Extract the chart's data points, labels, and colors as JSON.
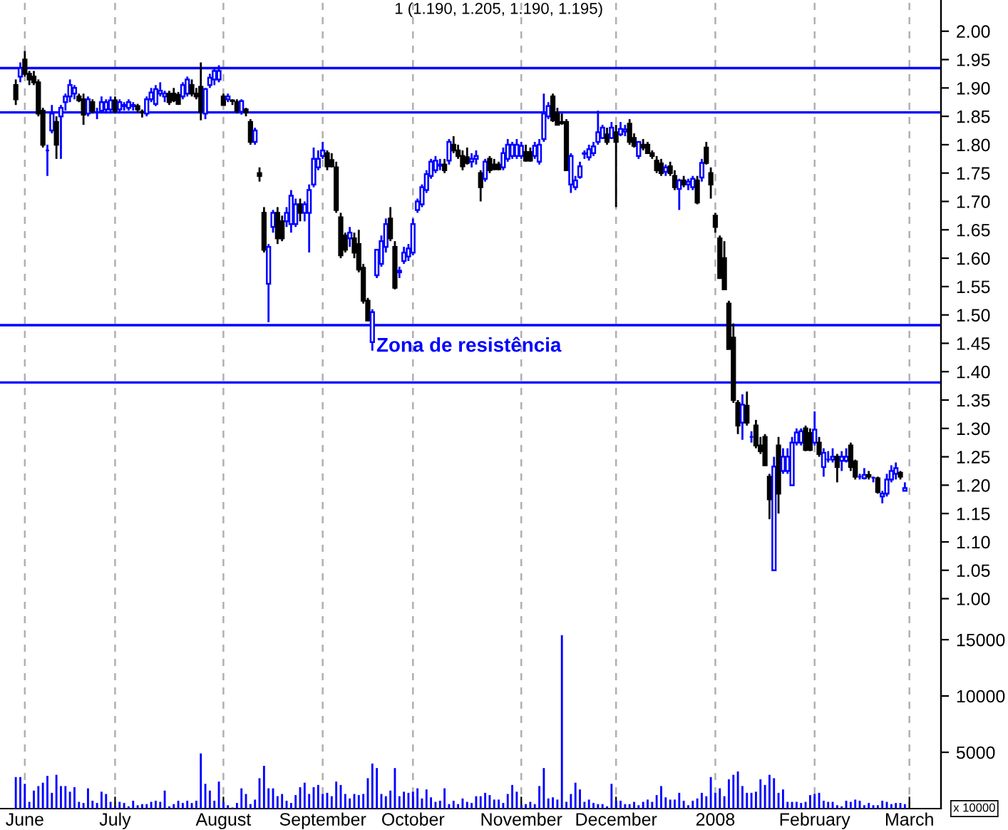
{
  "chart_data": [
    {
      "type": "candlestick",
      "title": "1 (1.190, 1.205, 1.190, 1.195)",
      "categories": [
        null,
        null,
        "June",
        null,
        null,
        null,
        null,
        null,
        null,
        null,
        null,
        null,
        null,
        null,
        null,
        null,
        null,
        null,
        null,
        null,
        null,
        null,
        "July",
        null,
        null,
        null,
        null,
        null,
        null,
        null,
        null,
        null,
        null,
        null,
        null,
        null,
        null,
        null,
        null,
        null,
        null,
        null,
        null,
        null,
        null,
        null,
        "August",
        null,
        null,
        null,
        null,
        null,
        null,
        null,
        null,
        null,
        null,
        null,
        null,
        null,
        null,
        null,
        null,
        null,
        null,
        null,
        null,
        null,
        "September",
        null,
        null,
        null,
        null,
        null,
        null,
        null,
        null,
        null,
        null,
        null,
        null,
        null,
        null,
        null,
        null,
        null,
        null,
        null,
        "October",
        null,
        null,
        null,
        null,
        null,
        null,
        null,
        null,
        null,
        null,
        null,
        null,
        null,
        null,
        null,
        null,
        null,
        null,
        null,
        null,
        null,
        null,
        null,
        "November",
        null,
        null,
        null,
        null,
        null,
        null,
        null,
        null,
        null,
        null,
        null,
        null,
        null,
        null,
        null,
        null,
        null,
        null,
        null,
        null,
        "December",
        null,
        null,
        null,
        null,
        null,
        null,
        null,
        null,
        null,
        null,
        null,
        null,
        null,
        null,
        null,
        null,
        null,
        null,
        null,
        null,
        null,
        "2008",
        null,
        null,
        null,
        null,
        null,
        null,
        null,
        null,
        null,
        null,
        null,
        null,
        null,
        null,
        null,
        null,
        null,
        null,
        null,
        null,
        null,
        "February",
        null,
        null,
        null,
        null,
        null,
        null,
        null,
        null,
        null,
        null,
        null,
        null,
        null,
        null,
        null,
        null,
        null,
        null,
        null,
        null,
        "March"
      ],
      "ohlc": [
        [
          1.905,
          1.915,
          1.87,
          1.88
        ],
        [
          1.92,
          1.945,
          1.91,
          1.935
        ],
        [
          1.95,
          1.965,
          1.92,
          1.925
        ],
        [
          1.925,
          1.93,
          1.905,
          1.915
        ],
        [
          1.92,
          1.93,
          1.905,
          1.91
        ],
        [
          1.91,
          1.915,
          1.85,
          1.855
        ],
        [
          1.86,
          1.865,
          1.795,
          1.8
        ],
        [
          1.79,
          1.8,
          1.745,
          1.79
        ],
        [
          1.825,
          1.87,
          1.82,
          1.855
        ],
        [
          1.84,
          1.85,
          1.775,
          1.8
        ],
        [
          1.85,
          1.87,
          1.775,
          1.865
        ],
        [
          1.875,
          1.89,
          1.86,
          1.885
        ],
        [
          1.885,
          1.915,
          1.875,
          1.905
        ],
        [
          1.89,
          1.905,
          1.88,
          1.9
        ],
        [
          1.885,
          1.89,
          1.875,
          1.878
        ],
        [
          1.88,
          1.89,
          1.835,
          1.853
        ],
        [
          1.855,
          1.885,
          1.85,
          1.88
        ],
        [
          1.875,
          1.88,
          1.855,
          1.86
        ],
        [
          1.857,
          1.865,
          1.845,
          1.857
        ],
        [
          1.86,
          1.885,
          1.855,
          1.875
        ],
        [
          1.862,
          1.88,
          1.855,
          1.875
        ],
        [
          1.862,
          1.885,
          1.855,
          1.878
        ],
        [
          1.878,
          1.885,
          1.855,
          1.86
        ],
        [
          1.862,
          1.88,
          1.855,
          1.875
        ],
        [
          1.868,
          1.875,
          1.86,
          1.87
        ],
        [
          1.865,
          1.88,
          1.86,
          1.875
        ],
        [
          1.868,
          1.875,
          1.86,
          1.87
        ],
        [
          1.868,
          1.872,
          1.858,
          1.862
        ],
        [
          1.858,
          1.862,
          1.848,
          1.857
        ],
        [
          1.855,
          1.885,
          1.85,
          1.88
        ],
        [
          1.88,
          1.9,
          1.875,
          1.892
        ],
        [
          1.872,
          1.905,
          1.868,
          1.898
        ],
        [
          1.89,
          1.91,
          1.885,
          1.895
        ],
        [
          1.885,
          1.895,
          1.875,
          1.89
        ],
        [
          1.89,
          1.895,
          1.87,
          1.875
        ],
        [
          1.89,
          1.9,
          1.875,
          1.878
        ],
        [
          1.888,
          1.893,
          1.87,
          1.872
        ],
        [
          1.885,
          1.91,
          1.88,
          1.905
        ],
        [
          1.89,
          1.92,
          1.885,
          1.915
        ],
        [
          1.905,
          1.915,
          1.885,
          1.89
        ],
        [
          1.89,
          1.9,
          1.88,
          1.885
        ],
        [
          1.902,
          1.945,
          1.843,
          1.858
        ],
        [
          1.855,
          1.9,
          1.845,
          1.898
        ],
        [
          1.905,
          1.925,
          1.9,
          1.918
        ],
        [
          1.915,
          1.935,
          1.905,
          1.93
        ],
        [
          1.915,
          1.94,
          1.91,
          1.93
        ],
        [
          1.885,
          1.89,
          1.87,
          1.87
        ],
        [
          1.88,
          1.89,
          1.875,
          1.885
        ],
        [
          1.878,
          1.88,
          1.87,
          1.877
        ],
        [
          1.875,
          1.88,
          1.855,
          1.86
        ],
        [
          1.858,
          1.88,
          1.853,
          1.877
        ],
        [
          1.862,
          1.865,
          1.85,
          1.857
        ],
        [
          1.84,
          1.845,
          1.8,
          1.805
        ],
        [
          1.805,
          1.83,
          1.8,
          1.825
        ],
        [
          1.75,
          1.76,
          1.735,
          1.745
        ],
        [
          1.68,
          1.69,
          1.61,
          1.615
        ],
        [
          1.555,
          1.625,
          1.487,
          1.62
        ],
        [
          1.655,
          1.685,
          1.645,
          1.68
        ],
        [
          1.68,
          1.69,
          1.625,
          1.635
        ],
        [
          1.665,
          1.675,
          1.63,
          1.635
        ],
        [
          1.665,
          1.69,
          1.655,
          1.68
        ],
        [
          1.66,
          1.72,
          1.645,
          1.71
        ],
        [
          1.66,
          1.705,
          1.655,
          1.695
        ],
        [
          1.695,
          1.705,
          1.665,
          1.68
        ],
        [
          1.68,
          1.7,
          1.665,
          1.695
        ],
        [
          1.68,
          1.73,
          1.61,
          1.72
        ],
        [
          1.73,
          1.795,
          1.725,
          1.775
        ],
        [
          1.76,
          1.79,
          1.755,
          1.775
        ],
        [
          1.78,
          1.805,
          1.775,
          1.79
        ],
        [
          1.785,
          1.79,
          1.755,
          1.762
        ],
        [
          1.773,
          1.785,
          1.76,
          1.762
        ],
        [
          1.76,
          1.77,
          1.68,
          1.685
        ],
        [
          1.672,
          1.68,
          1.6,
          1.605
        ],
        [
          1.64,
          1.645,
          1.61,
          1.615
        ],
        [
          1.635,
          1.655,
          1.62,
          1.645
        ],
        [
          1.635,
          1.645,
          1.6,
          1.61
        ],
        [
          1.625,
          1.65,
          1.575,
          1.58
        ],
        [
          1.583,
          1.59,
          1.52,
          1.525
        ],
        [
          1.525,
          1.53,
          1.49,
          1.49
        ],
        [
          1.452,
          1.51,
          1.437,
          1.505
        ],
        [
          1.57,
          1.615,
          1.565,
          1.615
        ],
        [
          1.59,
          1.64,
          1.585,
          1.63
        ],
        [
          1.62,
          1.67,
          1.61,
          1.66
        ],
        [
          1.67,
          1.69,
          1.63,
          1.635
        ],
        [
          1.62,
          1.63,
          1.545,
          1.548
        ],
        [
          1.575,
          1.585,
          1.565,
          1.578
        ],
        [
          1.595,
          1.62,
          1.59,
          1.61
        ],
        [
          1.603,
          1.625,
          1.595,
          1.617
        ],
        [
          1.61,
          1.67,
          1.605,
          1.66
        ],
        [
          1.685,
          1.705,
          1.68,
          1.7
        ],
        [
          1.695,
          1.73,
          1.69,
          1.725
        ],
        [
          1.72,
          1.755,
          1.715,
          1.748
        ],
        [
          1.745,
          1.775,
          1.74,
          1.77
        ],
        [
          1.755,
          1.78,
          1.75,
          1.772
        ],
        [
          1.763,
          1.775,
          1.755,
          1.765
        ],
        [
          1.765,
          1.775,
          1.75,
          1.755
        ],
        [
          1.772,
          1.81,
          1.765,
          1.805
        ],
        [
          1.8,
          1.815,
          1.785,
          1.79
        ],
        [
          1.79,
          1.8,
          1.775,
          1.78
        ],
        [
          1.78,
          1.79,
          1.755,
          1.762
        ],
        [
          1.778,
          1.795,
          1.765,
          1.768
        ],
        [
          1.77,
          1.785,
          1.76,
          1.775
        ],
        [
          1.775,
          1.79,
          1.765,
          1.78
        ],
        [
          1.75,
          1.755,
          1.7,
          1.725
        ],
        [
          1.74,
          1.775,
          1.735,
          1.77
        ],
        [
          1.775,
          1.78,
          1.75,
          1.755
        ],
        [
          1.765,
          1.775,
          1.755,
          1.757
        ],
        [
          1.765,
          1.77,
          1.755,
          1.757
        ],
        [
          1.76,
          1.795,
          1.755,
          1.785
        ],
        [
          1.775,
          1.81,
          1.77,
          1.8
        ],
        [
          1.78,
          1.805,
          1.775,
          1.8
        ],
        [
          1.78,
          1.81,
          1.775,
          1.8
        ],
        [
          1.78,
          1.805,
          1.775,
          1.798
        ],
        [
          1.787,
          1.8,
          1.77,
          1.772
        ],
        [
          1.787,
          1.795,
          1.77,
          1.772
        ],
        [
          1.78,
          1.805,
          1.775,
          1.798
        ],
        [
          1.77,
          1.81,
          1.765,
          1.8
        ],
        [
          1.81,
          1.89,
          1.805,
          1.855
        ],
        [
          1.85,
          1.875,
          1.845,
          1.868
        ],
        [
          1.885,
          1.89,
          1.84,
          1.843
        ],
        [
          1.855,
          1.865,
          1.835,
          1.835
        ],
        [
          1.84,
          1.855,
          1.835,
          1.838
        ],
        [
          1.84,
          1.845,
          1.755,
          1.755
        ],
        [
          1.73,
          1.785,
          1.715,
          1.78
        ],
        [
          1.725,
          1.745,
          1.72,
          1.737
        ],
        [
          1.743,
          1.77,
          1.74,
          1.762
        ],
        [
          1.784,
          1.79,
          1.775,
          1.785
        ],
        [
          1.778,
          1.8,
          1.772,
          1.792
        ],
        [
          1.785,
          1.805,
          1.78,
          1.797
        ],
        [
          1.805,
          1.86,
          1.8,
          1.822
        ],
        [
          1.812,
          1.835,
          1.81,
          1.83
        ],
        [
          1.818,
          1.83,
          1.8,
          1.805
        ],
        [
          1.812,
          1.84,
          1.81,
          1.83
        ],
        [
          1.822,
          1.835,
          1.69,
          1.805
        ],
        [
          1.818,
          1.84,
          1.815,
          1.828
        ],
        [
          1.823,
          1.835,
          1.815,
          1.827
        ],
        [
          1.837,
          1.845,
          1.8,
          1.805
        ],
        [
          1.812,
          1.82,
          1.795,
          1.798
        ],
        [
          1.78,
          1.805,
          1.775,
          1.805
        ],
        [
          1.8,
          1.81,
          1.79,
          1.795
        ],
        [
          1.8,
          1.805,
          1.785,
          1.785
        ],
        [
          1.785,
          1.79,
          1.775,
          1.78
        ],
        [
          1.772,
          1.78,
          1.75,
          1.755
        ],
        [
          1.767,
          1.775,
          1.745,
          1.75
        ],
        [
          1.752,
          1.765,
          1.745,
          1.76
        ],
        [
          1.762,
          1.77,
          1.745,
          1.75
        ],
        [
          1.745,
          1.755,
          1.72,
          1.725
        ],
        [
          1.722,
          1.74,
          1.685,
          1.737
        ],
        [
          1.737,
          1.745,
          1.725,
          1.73
        ],
        [
          1.73,
          1.74,
          1.72,
          1.735
        ],
        [
          1.725,
          1.745,
          1.72,
          1.74
        ],
        [
          1.737,
          1.745,
          1.695,
          1.698
        ],
        [
          1.742,
          1.775,
          1.735,
          1.768
        ],
        [
          1.795,
          1.805,
          1.765,
          1.768
        ],
        [
          1.75,
          1.76,
          1.705,
          1.73
        ],
        [
          1.675,
          1.68,
          1.645,
          1.655
        ],
        [
          1.635,
          1.64,
          1.565,
          1.565
        ],
        [
          1.6,
          1.63,
          1.545,
          1.545
        ],
        [
          1.52,
          1.525,
          1.44,
          1.44
        ],
        [
          1.46,
          1.485,
          1.345,
          1.35
        ],
        [
          1.345,
          1.35,
          1.29,
          1.305
        ],
        [
          1.31,
          1.36,
          1.28,
          1.342
        ],
        [
          1.34,
          1.365,
          1.305,
          1.31
        ],
        [
          1.285,
          1.295,
          1.275,
          1.285
        ],
        [
          1.305,
          1.315,
          1.265,
          1.27
        ],
        [
          1.27,
          1.285,
          1.255,
          1.26
        ],
        [
          1.285,
          1.29,
          1.235,
          1.235
        ],
        [
          1.215,
          1.22,
          1.14,
          1.175
        ],
        [
          1.05,
          1.25,
          1.05,
          1.233
        ],
        [
          1.27,
          1.285,
          1.15,
          1.185
        ],
        [
          1.225,
          1.265,
          1.22,
          1.25
        ],
        [
          1.225,
          1.265,
          1.22,
          1.25
        ],
        [
          1.2,
          1.285,
          1.2,
          1.275
        ],
        [
          1.275,
          1.3,
          1.27,
          1.293
        ],
        [
          1.275,
          1.3,
          1.27,
          1.295
        ],
        [
          1.3,
          1.305,
          1.26,
          1.262
        ],
        [
          1.292,
          1.3,
          1.26,
          1.262
        ],
        [
          1.275,
          1.33,
          1.27,
          1.298
        ],
        [
          1.275,
          1.285,
          1.25,
          1.255
        ],
        [
          1.232,
          1.265,
          1.215,
          1.257
        ],
        [
          1.245,
          1.26,
          1.24,
          1.245
        ],
        [
          1.245,
          1.265,
          1.24,
          1.25
        ],
        [
          1.25,
          1.255,
          1.205,
          1.232
        ],
        [
          1.243,
          1.26,
          1.225,
          1.25
        ],
        [
          1.243,
          1.265,
          1.24,
          1.25
        ],
        [
          1.27,
          1.275,
          1.225,
          1.232
        ],
        [
          1.242,
          1.245,
          1.21,
          1.215
        ],
        [
          1.215,
          1.22,
          1.21,
          1.215
        ],
        [
          1.212,
          1.23,
          1.21,
          1.218
        ],
        [
          1.218,
          1.225,
          1.21,
          1.215
        ],
        [
          1.213,
          1.215,
          1.205,
          1.213
        ],
        [
          1.212,
          1.215,
          1.185,
          1.188
        ],
        [
          1.18,
          1.19,
          1.168,
          1.185
        ],
        [
          1.185,
          1.22,
          1.18,
          1.21
        ],
        [
          1.21,
          1.235,
          1.205,
          1.225
        ],
        [
          1.22,
          1.24,
          1.21,
          1.23
        ],
        [
          1.222,
          1.225,
          1.21,
          1.215
        ],
        [
          1.19,
          1.205,
          1.19,
          1.195
        ],
        null
      ],
      "ylim": [
        0.63,
        2.055
      ],
      "yticks": [
        {
          "value": 1.0,
          "label": "1.00"
        },
        1.05,
        {
          "value": 1.1,
          "label": "1.10"
        },
        1.15,
        {
          "value": 1.2,
          "label": "1.20"
        },
        1.25,
        {
          "value": 1.3,
          "label": "1.30"
        },
        1.35,
        {
          "value": 1.4,
          "label": "1.40"
        },
        1.45,
        {
          "value": 1.5,
          "label": "1.50"
        },
        1.55,
        {
          "value": 1.6,
          "label": "1.60"
        },
        1.65,
        {
          "value": 1.7,
          "label": "1.70"
        },
        1.75,
        {
          "value": 1.8,
          "label": "1.80"
        },
        1.85,
        {
          "value": 1.9,
          "label": "1.90"
        },
        1.95,
        {
          "value": 2.0,
          "label": "2.00"
        }
      ],
      "grid": "x",
      "ref_lines": [
        {
          "axis": "y",
          "value": 1.935,
          "color": "#0000ff"
        },
        {
          "axis": "y",
          "value": 1.857,
          "color": "#0000ff"
        },
        {
          "axis": "y",
          "value": 1.482,
          "color": "#0000ff"
        },
        {
          "axis": "y",
          "value": 1.381,
          "color": "#0000ff"
        }
      ],
      "series": [
        {
          "type": "bar",
          "axis": "y2",
          "color": "#0000ff",
          "values": [
            2800,
            2800,
            2200,
            600,
            1600,
            2000,
            2300,
            2900,
            1400,
            3000,
            2000,
            2000,
            1500,
            1900,
            600,
            500,
            1800,
            700,
            500,
            1500,
            1300,
            600,
            200,
            600,
            500,
            200,
            700,
            300,
            400,
            400,
            600,
            700,
            600,
            1600,
            200,
            400,
            700,
            500,
            700,
            500,
            700,
            4900,
            2200,
            1600,
            700,
            2400,
            600,
            300,
            100,
            500,
            1800,
            1300,
            400,
            800,
            2700,
            3800,
            1800,
            1800,
            1100,
            1300,
            700,
            500,
            1200,
            1900,
            2300,
            1300,
            1900,
            2100,
            1300,
            1400,
            1100,
            2400,
            2100,
            1300,
            900,
            1300,
            1200,
            1300,
            2700,
            4000,
            3600,
            1300,
            1100,
            1600,
            3600,
            1100,
            1500,
            1400,
            1500,
            1800,
            900,
            1700,
            1000,
            600,
            700,
            1800,
            400,
            700,
            400,
            900,
            600,
            500,
            1100,
            1100,
            1400,
            1200,
            800,
            800,
            500,
            1300,
            2100,
            1500,
            300,
            400,
            600,
            400,
            2000,
            3600,
            900,
            1000,
            800,
            15400,
            600,
            1300,
            2300,
            1700,
            600,
            800,
            500,
            400,
            400,
            200,
            2200,
            700,
            700,
            400,
            400,
            600,
            300,
            600,
            800,
            600,
            1200,
            2000,
            1000,
            800,
            800,
            1400,
            700,
            300,
            700,
            900,
            1400,
            1100,
            2800,
            1400,
            1800,
            1100,
            2600,
            3000,
            3300,
            2000,
            1400,
            1400,
            1500,
            2600,
            2100,
            3000,
            2700,
            1400,
            1700,
            600,
            600,
            600,
            500,
            600,
            1200,
            1300,
            1400,
            700,
            600,
            600,
            300,
            200,
            700,
            600,
            800,
            700,
            300,
            500,
            300,
            300,
            700,
            600,
            400,
            500,
            500,
            400,
            null
          ]
        }
      ],
      "y2lim": [
        0,
        71800
      ],
      "y2ticks": [
        5000,
        10000,
        15000
      ],
      "annotations": [
        "Zona de resistência",
        "x 10000"
      ]
    }
  ]
}
